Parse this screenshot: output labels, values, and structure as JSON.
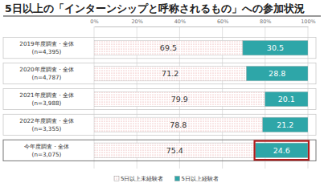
{
  "chart_data": {
    "type": "bar",
    "orientation": "horizontal",
    "stacked": true,
    "title": "5日以上の「インターンシップと呼称されるもの」への参加状況",
    "categories": [
      "2019年度調査・全体\n(n=4,395)",
      "2020年度調査・全体\n(n=4,787)",
      "2021年度調査・全体\n(n=3,988)",
      "2022年度調査・全体\n(n=3,355)",
      "今年度調査・全体\n(n=3,075)"
    ],
    "series": [
      {
        "name": "5日以上未経験者",
        "color": "#e58f8f",
        "values": [
          69.5,
          71.2,
          79.9,
          78.8,
          75.4
        ]
      },
      {
        "name": "5日以上経験者",
        "color": "#2ea6a8",
        "values": [
          30.5,
          28.8,
          20.1,
          21.2,
          24.6
        ]
      }
    ],
    "xlim": [
      0,
      100
    ],
    "xticks": [
      {
        "value": 0,
        "label": "0%"
      },
      {
        "value": 20,
        "label": "20%"
      },
      {
        "value": 40,
        "label": "40%"
      },
      {
        "value": 60,
        "label": "60%"
      },
      {
        "value": 80,
        "label": "80%"
      },
      {
        "value": 100,
        "label": "100%"
      }
    ],
    "grid": true,
    "data_labels": true,
    "legend": "bottom"
  }
}
